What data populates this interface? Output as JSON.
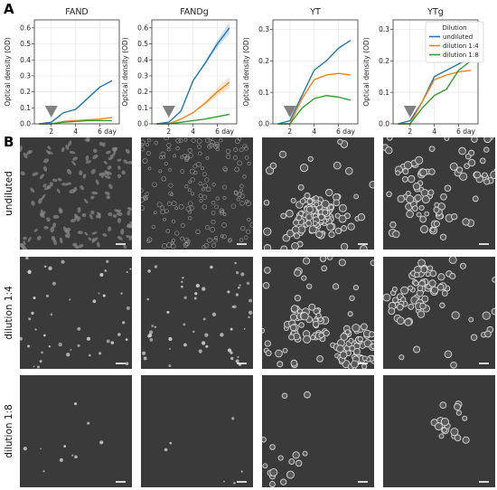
{
  "panels": {
    "A": "A",
    "B": "B"
  },
  "colors": {
    "undiluted": "#1f77b4",
    "dilution_1_4": "#ff7f0e",
    "dilution_1_8": "#2ca02c",
    "arrow": "#808080",
    "micrograph_bg": "#3a3a3a",
    "cell": "#c9c9c9",
    "scalebar": "#ffffff"
  },
  "chart_data": [
    {
      "type": "line",
      "title": "FAND",
      "xlabel": "day",
      "ylabel": "Optical density (OD)",
      "xticks": [
        2,
        4,
        6
      ],
      "yticks": [
        0.0,
        0.1,
        0.2,
        0.3,
        0.4,
        0.5,
        0.6
      ],
      "xlim": [
        0.6,
        7.6
      ],
      "ylim": [
        0,
        0.65
      ],
      "grid": true,
      "arrow_day": 2,
      "series": [
        {
          "name": "undiluted",
          "x": [
            1,
            2,
            3,
            4,
            5,
            6,
            7
          ],
          "y": [
            0.0,
            0.01,
            0.07,
            0.09,
            0.16,
            0.23,
            0.27
          ]
        },
        {
          "name": "dilution 1:4",
          "x": [
            1,
            2,
            3,
            4,
            5,
            6,
            7
          ],
          "y": [
            0.0,
            0.0,
            0.015,
            0.02,
            0.025,
            0.03,
            0.04
          ]
        },
        {
          "name": "dilution 1:8",
          "x": [
            1,
            2,
            3,
            4,
            5,
            6,
            7
          ],
          "y": [
            0.0,
            0.0,
            0.01,
            0.015,
            0.02,
            0.02,
            0.02
          ]
        }
      ]
    },
    {
      "type": "line",
      "title": "FANDg",
      "xlabel": "day",
      "ylabel": "Optical density (OD)",
      "xticks": [
        2,
        4,
        6
      ],
      "yticks": [
        0.0,
        0.1,
        0.2,
        0.3,
        0.4,
        0.5,
        0.6
      ],
      "xlim": [
        0.6,
        7.6
      ],
      "ylim": [
        0,
        0.65
      ],
      "grid": true,
      "arrow_day": 2,
      "series": [
        {
          "name": "undiluted",
          "x": [
            1,
            2,
            3,
            4,
            5,
            6,
            7
          ],
          "y": [
            0.0,
            0.01,
            0.08,
            0.27,
            0.38,
            0.5,
            0.6
          ]
        },
        {
          "name": "dilution 1:4",
          "x": [
            1,
            2,
            3,
            4,
            5,
            6,
            7
          ],
          "y": [
            0.0,
            0.0,
            0.03,
            0.07,
            0.13,
            0.2,
            0.26
          ]
        },
        {
          "name": "dilution 1:8",
          "x": [
            1,
            2,
            3,
            4,
            5,
            6,
            7
          ],
          "y": [
            0.0,
            0.0,
            0.01,
            0.02,
            0.03,
            0.045,
            0.06
          ]
        }
      ]
    },
    {
      "type": "line",
      "title": "YT",
      "xlabel": "day",
      "ylabel": "Optical density (OD)",
      "xticks": [
        2,
        4,
        6
      ],
      "yticks": [
        0.0,
        0.1,
        0.2,
        0.3
      ],
      "xlim": [
        0.6,
        7.6
      ],
      "ylim": [
        0,
        0.33
      ],
      "grid": true,
      "arrow_day": 2,
      "series": [
        {
          "name": "undiluted",
          "x": [
            1,
            2,
            3,
            4,
            5,
            6,
            7
          ],
          "y": [
            0.0,
            0.01,
            0.09,
            0.17,
            0.2,
            0.24,
            0.265
          ]
        },
        {
          "name": "dilution 1:4",
          "x": [
            1,
            2,
            3,
            4,
            5,
            6,
            7
          ],
          "y": [
            0.0,
            0.0,
            0.08,
            0.14,
            0.155,
            0.16,
            0.155
          ]
        },
        {
          "name": "dilution 1:8",
          "x": [
            1,
            2,
            3,
            4,
            5,
            6,
            7
          ],
          "y": [
            0.0,
            0.0,
            0.05,
            0.08,
            0.09,
            0.085,
            0.075
          ]
        }
      ]
    },
    {
      "type": "line",
      "title": "YTg",
      "xlabel": "day",
      "ylabel": "Optical density (OD)",
      "xticks": [
        2,
        4,
        6
      ],
      "yticks": [
        0.0,
        0.1,
        0.2,
        0.3
      ],
      "xlim": [
        0.6,
        7.6
      ],
      "ylim": [
        0,
        0.33
      ],
      "grid": true,
      "arrow_day": 2,
      "legend": {
        "title": "Dilution",
        "entries": [
          "undiluted",
          "dilution 1:4",
          "dilution 1:8"
        ],
        "placement": "top-right"
      },
      "series": [
        {
          "name": "undiluted",
          "x": [
            1,
            2,
            3,
            4,
            5,
            6,
            7
          ],
          "y": [
            0.0,
            0.01,
            0.07,
            0.15,
            0.17,
            0.19,
            0.21
          ]
        },
        {
          "name": "dilution 1:4",
          "x": [
            1,
            2,
            3,
            4,
            5,
            6,
            7
          ],
          "y": [
            0.0,
            0.0,
            0.07,
            0.14,
            0.155,
            0.165,
            0.17
          ]
        },
        {
          "name": "dilution 1:8",
          "x": [
            1,
            2,
            3,
            4,
            5,
            6,
            7
          ],
          "y": [
            0.0,
            0.0,
            0.05,
            0.09,
            0.11,
            0.17,
            0.2
          ]
        }
      ]
    }
  ],
  "micrographs": {
    "rows": [
      "undiluted",
      "dilution 1:4",
      "dilution 1:8"
    ],
    "columns": [
      "FAND",
      "FANDg",
      "YT",
      "YTg"
    ]
  }
}
